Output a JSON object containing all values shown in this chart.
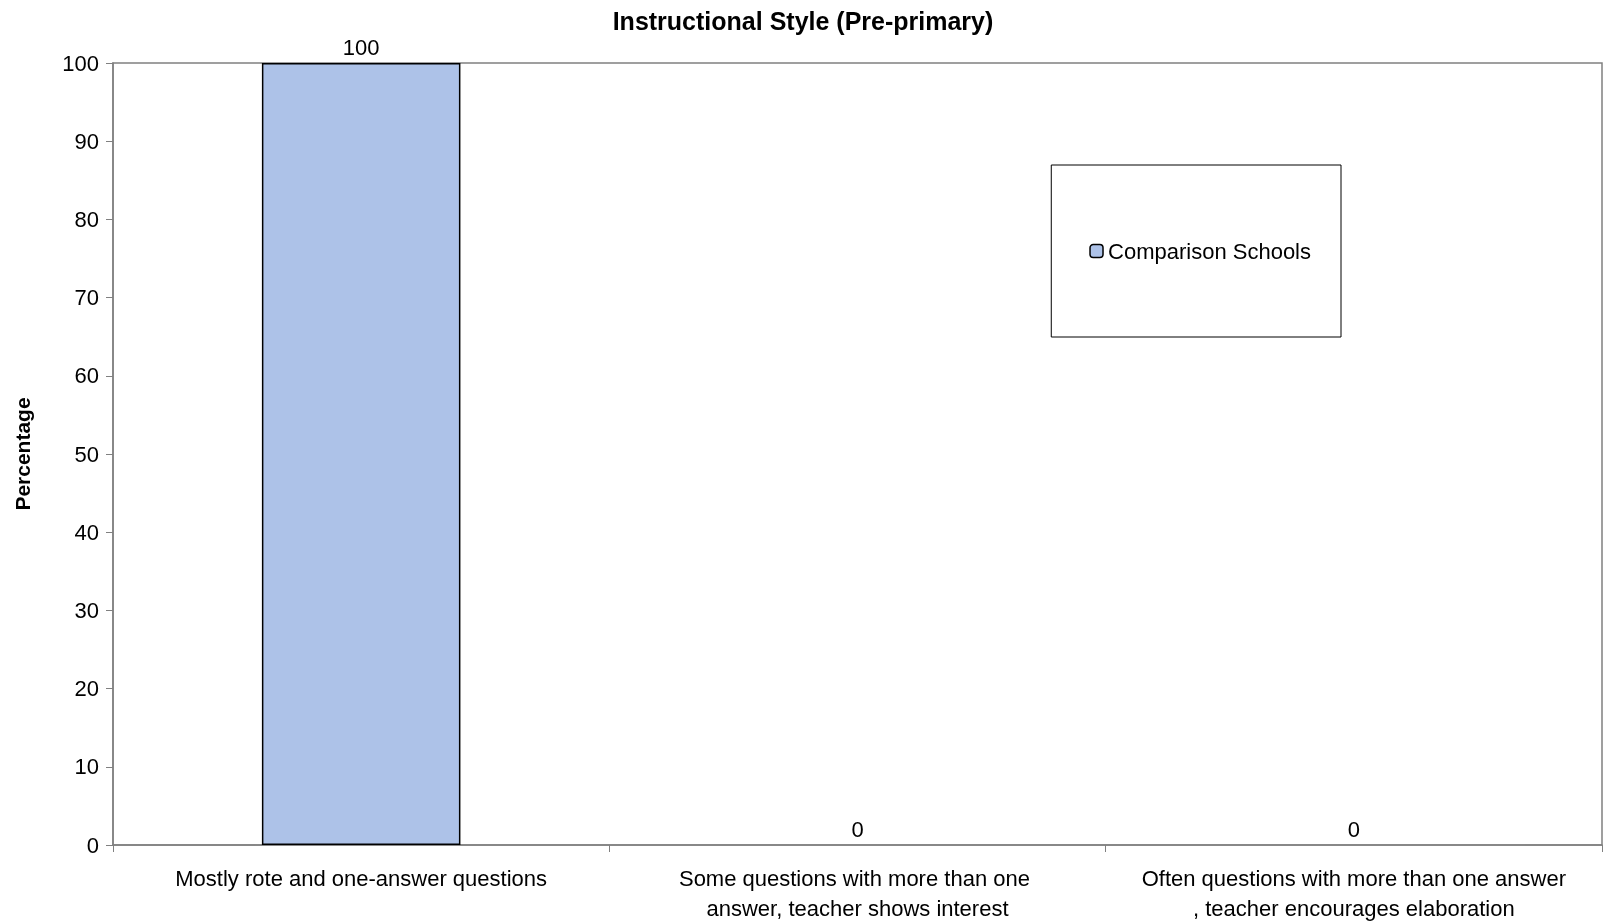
{
  "chart_data": {
    "type": "bar",
    "title": "Instructional Style (Pre-primary)",
    "ylabel": "Percentage",
    "categories": [
      "Mostly rote and one-answer questions",
      "Some questions with more than one answer, teacher shows interest",
      "Often questions with more than one answer, teacher encourages elaboration"
    ],
    "series": [
      {
        "name": "Comparison Schools",
        "color": "#adc2e8",
        "values": [
          100,
          0,
          0
        ]
      }
    ],
    "ylim": [
      0,
      100
    ],
    "yticks": [
      0,
      10,
      20,
      30,
      40,
      50,
      60,
      70,
      80,
      90,
      100
    ],
    "grid": false,
    "legend": "top right",
    "data_labels": true
  }
}
